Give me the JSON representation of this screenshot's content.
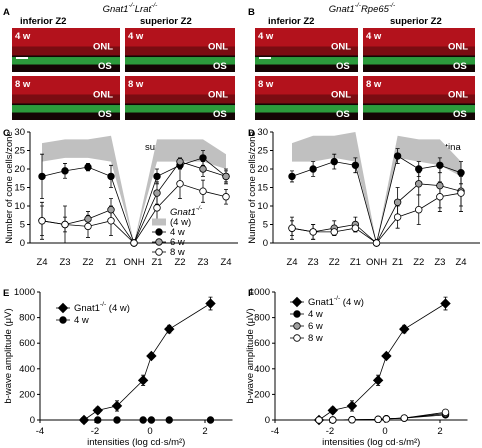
{
  "panels": [
    {
      "label": "A",
      "title": "Gnat1-/-Lrat-/-",
      "columns": [
        "inferior Z2",
        "superior Z2"
      ],
      "images": [
        {
          "age": "4 w",
          "layers": [
            "ONL",
            "OS"
          ]
        },
        {
          "age": "4 w",
          "layers": [
            "ONL",
            "OS"
          ]
        },
        {
          "age": "8 w",
          "layers": [
            "ONL",
            "OS"
          ]
        },
        {
          "age": "8 w",
          "layers": [
            "ONL",
            "OS"
          ]
        }
      ]
    },
    {
      "label": "B",
      "title": "Gnat1-/-Rpe65-/-",
      "columns": [
        "inferior Z2",
        "superior Z2"
      ],
      "images": [
        {
          "age": "4 w",
          "layers": [
            "ONL",
            "OS"
          ]
        },
        {
          "age": "4 w",
          "layers": [
            "ONL",
            "OS"
          ]
        },
        {
          "age": "8 w",
          "layers": [
            "ONL",
            "OS"
          ]
        },
        {
          "age": "8 w",
          "layers": [
            "ONL",
            "OS"
          ]
        }
      ]
    }
  ],
  "chart_data": [
    {
      "label": "C",
      "type": "line",
      "ylabel": "Number of cone cells/zone",
      "annotations": [
        "inferior retina",
        "superior retina"
      ],
      "categories": [
        "Z4",
        "Z3",
        "Z2",
        "Z1",
        "ONH",
        "Z1",
        "Z2",
        "Z3",
        "Z4"
      ],
      "ylim": [
        0,
        30
      ],
      "yticks": [
        0,
        5,
        10,
        15,
        20,
        25,
        30
      ],
      "legend": true,
      "legend_title": "Gnat1-/-",
      "band": {
        "name": "(4 w)",
        "color": "#c0c0c0",
        "upper": [
          27,
          28,
          28,
          29,
          0,
          28,
          28,
          28,
          24
        ],
        "lower": [
          22,
          23,
          23,
          22,
          0,
          22,
          22,
          22,
          20
        ]
      },
      "series": [
        {
          "name": "4 w",
          "color": "#000000",
          "marker": "circle",
          "values": [
            18,
            19.5,
            20.5,
            18,
            0,
            18,
            21,
            23,
            18
          ],
          "errors": [
            6,
            2,
            1,
            3,
            0,
            2,
            1,
            2,
            2
          ]
        },
        {
          "name": "6 w",
          "color": "#a0a0a0",
          "marker": "circle",
          "values": [
            6,
            5,
            6.5,
            9,
            0,
            13.5,
            22,
            20,
            18
          ],
          "errors": [
            4,
            2,
            2,
            3,
            0,
            3,
            1,
            2,
            1.5
          ]
        },
        {
          "name": "8 w",
          "color": "#ffffff",
          "marker": "circle",
          "values": [
            6,
            5,
            4.5,
            6,
            0,
            9.5,
            16,
            14,
            12.5
          ],
          "errors": [
            5,
            5,
            3,
            4,
            0,
            4,
            4,
            3,
            2
          ]
        }
      ]
    },
    {
      "label": "D",
      "type": "line",
      "ylabel": "Number of cone cells/zone",
      "annotations": [
        "inferior retina",
        "superior retina"
      ],
      "categories": [
        "Z4",
        "Z3",
        "Z2",
        "Z1",
        "ONH",
        "Z1",
        "Z2",
        "Z3",
        "Z4"
      ],
      "ylim": [
        0,
        30
      ],
      "yticks": [
        0,
        5,
        10,
        15,
        20,
        25,
        30
      ],
      "legend": false,
      "band": {
        "color": "#c0c0c0",
        "upper": [
          27,
          29,
          29,
          30,
          0,
          29,
          28,
          28,
          22
        ],
        "lower": [
          22,
          22,
          23,
          22,
          0,
          23,
          22,
          21,
          18
        ]
      },
      "series": [
        {
          "color": "#000000",
          "marker": "circle",
          "values": [
            18,
            20,
            22,
            21,
            0,
            23.5,
            20,
            21,
            19
          ],
          "errors": [
            1.5,
            2,
            2,
            2,
            0,
            2,
            2,
            2,
            3
          ]
        },
        {
          "color": "#a0a0a0",
          "marker": "circle",
          "values": [
            4,
            3,
            4,
            5,
            0,
            11,
            16,
            15.5,
            14
          ],
          "errors": [
            3,
            2,
            2,
            2,
            0,
            4,
            3,
            6,
            4
          ]
        },
        {
          "color": "#ffffff",
          "marker": "circle",
          "values": [
            4,
            3,
            3,
            4,
            0,
            7,
            9,
            12.5,
            13.5
          ],
          "errors": [
            2,
            2,
            1,
            1,
            0,
            3,
            4,
            4,
            5
          ]
        }
      ]
    },
    {
      "label": "E",
      "type": "line",
      "ylabel": "b-wave amplitude (μV)",
      "xlabel": "intensities (log cd·s/m²)",
      "x": [
        -2.4,
        -1.9,
        -1.2,
        -0.25,
        0.05,
        0.7,
        2.2
      ],
      "xlim": [
        -4,
        3
      ],
      "xticks": [
        -4,
        -2,
        0,
        2
      ],
      "ylim": [
        0,
        1000
      ],
      "yticks": [
        0,
        200,
        400,
        600,
        800,
        1000
      ],
      "legend": true,
      "series": [
        {
          "name": "Gnat1-/- (4 w)",
          "color": "#000000",
          "marker": "diamond",
          "values": [
            0,
            75,
            110,
            310,
            500,
            710,
            910
          ],
          "errors": [
            10,
            25,
            40,
            40,
            20,
            30,
            50
          ]
        },
        {
          "name": "4 w",
          "color": "#000000",
          "marker": "circle",
          "values": [
            0,
            0,
            0,
            0,
            0,
            0,
            0
          ]
        }
      ]
    },
    {
      "label": "F",
      "type": "line",
      "ylabel": "b-wave amplitude (μV)",
      "xlabel": "intensities (log cd·s/m²)",
      "x": [
        -2.4,
        -1.9,
        -1.2,
        -0.25,
        0.05,
        0.7,
        2.2
      ],
      "xlim": [
        -4,
        3
      ],
      "xticks": [
        -4,
        -2,
        0,
        2
      ],
      "ylim": [
        0,
        1000
      ],
      "yticks": [
        0,
        200,
        400,
        600,
        800,
        1000
      ],
      "legend": true,
      "series": [
        {
          "name": "Gnat1-/- (4 w)",
          "color": "#000000",
          "marker": "diamond",
          "values": [
            0,
            75,
            110,
            310,
            500,
            710,
            910
          ],
          "errors": [
            10,
            25,
            40,
            40,
            20,
            30,
            50
          ]
        },
        {
          "name": "4 w",
          "color": "#000000",
          "marker": "circle",
          "values": [
            0,
            0,
            2,
            5,
            10,
            15,
            40
          ]
        },
        {
          "name": "6 w",
          "color": "#a0a0a0",
          "marker": "circle",
          "values": [
            0,
            0,
            2,
            5,
            10,
            15,
            50
          ]
        },
        {
          "name": "8 w",
          "color": "#ffffff",
          "marker": "circle",
          "values": [
            0,
            0,
            2,
            5,
            8,
            15,
            60
          ]
        }
      ]
    }
  ]
}
